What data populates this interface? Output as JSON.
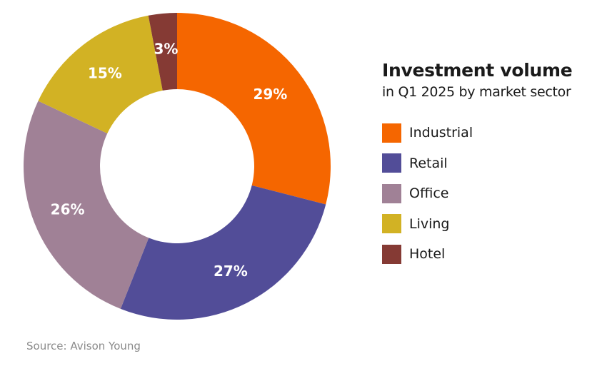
{
  "chart_data": {
    "type": "pie",
    "title": "Investment volume",
    "subtitle": "in Q1 2025 by market sector",
    "donut": true,
    "legend_position": "right",
    "categories": [
      "Industrial",
      "Retail",
      "Office",
      "Living",
      "Hotel"
    ],
    "values": [
      29,
      27,
      26,
      15,
      3
    ],
    "labels": [
      "29%",
      "27%",
      "26%",
      "15%",
      "3%"
    ],
    "colors": [
      "#f56600",
      "#524d98",
      "#a08196",
      "#d2b224",
      "#853a34"
    ]
  },
  "source": "Source: Avison Young"
}
